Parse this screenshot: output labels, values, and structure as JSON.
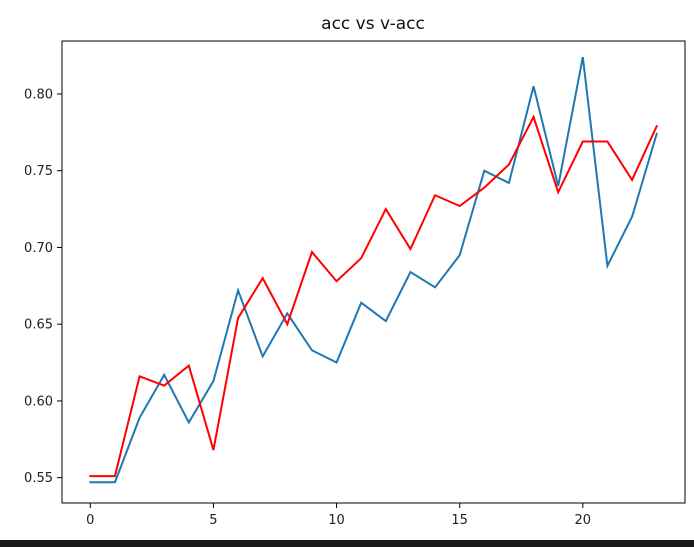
{
  "chart_data": {
    "type": "line",
    "title": "acc vs v-acc",
    "xlabel": "",
    "ylabel": "",
    "xlim": [
      -1.15,
      24.15
    ],
    "ylim": [
      0.5335,
      0.8345
    ],
    "x_ticks": [
      0,
      5,
      10,
      15,
      20
    ],
    "x_tick_labels": [
      "0",
      "5",
      "10",
      "15",
      "20"
    ],
    "y_ticks": [
      0.55,
      0.6,
      0.65,
      0.7,
      0.75,
      0.8
    ],
    "y_tick_labels": [
      "0.55",
      "0.60",
      "0.65",
      "0.70",
      "0.75",
      "0.80"
    ],
    "grid": false,
    "legend": "none",
    "x": [
      0,
      1,
      2,
      3,
      4,
      5,
      6,
      7,
      8,
      9,
      10,
      11,
      12,
      13,
      14,
      15,
      16,
      17,
      18,
      19,
      20,
      21,
      22,
      23
    ],
    "series": [
      {
        "color": "#1f77b4",
        "values": [
          0.547,
          0.547,
          0.589,
          0.617,
          0.586,
          0.613,
          0.672,
          0.629,
          0.657,
          0.633,
          0.625,
          0.664,
          0.652,
          0.684,
          0.674,
          0.695,
          0.75,
          0.742,
          0.805,
          0.74,
          0.824,
          0.688,
          0.72,
          0.774
        ]
      },
      {
        "color": "#ff0000",
        "values": [
          0.551,
          0.551,
          0.616,
          0.61,
          0.623,
          0.568,
          0.654,
          0.68,
          0.65,
          0.697,
          0.678,
          0.693,
          0.725,
          0.699,
          0.734,
          0.727,
          0.739,
          0.754,
          0.785,
          0.736,
          0.769,
          0.769,
          0.744,
          0.779
        ]
      }
    ]
  }
}
